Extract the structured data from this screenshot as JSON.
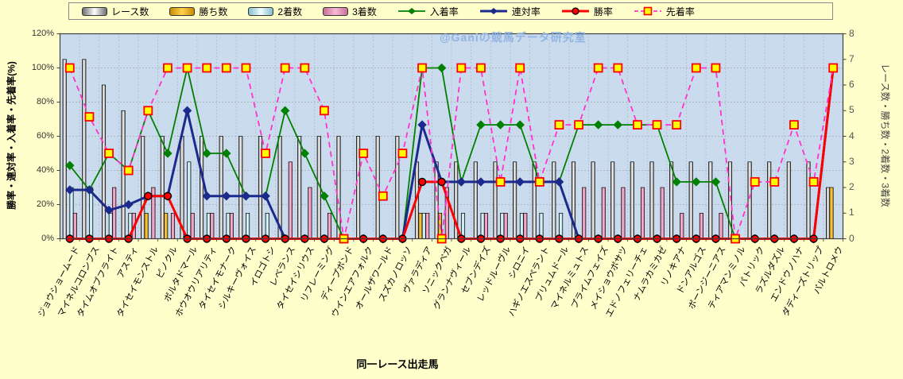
{
  "watermark": "@Ganiの競馬データ研究室",
  "colors": {
    "page_bg": "#FFFFCC",
    "plot_bg": "#CBDBEE",
    "grid": "#8C8C8C",
    "axis": "#404040",
    "tick_text": "#333333",
    "watermark_text": "#8FB4E3"
  },
  "chart_data": {
    "type": "combo",
    "title": "",
    "xlabel": "同一レース出走馬",
    "ylabel_left": "勝率・連対率・入着率・先着率(%)",
    "ylabel_right": "レース数・勝ち数・2着数・3着数",
    "ylim_left": [
      0,
      120
    ],
    "ylim_right": [
      0,
      8
    ],
    "yticks_left": [
      "0%",
      "20%",
      "40%",
      "60%",
      "80%",
      "100%",
      "120%"
    ],
    "yticks_right": [
      "0",
      "1",
      "2",
      "3",
      "4",
      "5",
      "6",
      "7",
      "8"
    ],
    "grid": true,
    "legend_position": "top",
    "categories": [
      "ジョウショームード",
      "マイネルコロンブス",
      "タイムオブフライト",
      "アスティ",
      "タイセイモンストル",
      "ピノクル",
      "ボルタドマール",
      "ホウオウリアリティ",
      "タイセイモナーク",
      "シルキーヴォイス",
      "イロゴトシ",
      "レベランス",
      "タイセイシリウス",
      "リフレーミング",
      "ディープボンド",
      "ウインエアフォルク",
      "オールザワールド",
      "スズカノロッソ",
      "ヴァラディア",
      "ソニックベガ",
      "グランナヴィール",
      "セブンデイズ",
      "レッドルーヴル",
      "シロニイ",
      "ハギノエスペラント",
      "プリュムドール",
      "マイネルミュトス",
      "プライムフェイズ",
      "メイショウボサツ",
      "エドノフェリーチェ",
      "ナムラカミカゼ",
      "リノキアナ",
      "ドンアルゴス",
      "ボーンジーニアス",
      "ティアマンミノル",
      "パトリック",
      "ラズルダズル",
      "エンドウノハナ",
      "ダディーズトリップ",
      "バルトロメウ"
    ],
    "series": [
      {
        "name": "レース数",
        "kind": "bar",
        "axis": "right",
        "color_mid": "#FFFFFF",
        "color_edge": "#6E6E6E",
        "values": [
          7,
          7,
          6,
          5,
          4,
          4,
          4,
          4,
          4,
          4,
          4,
          4,
          4,
          4,
          4,
          4,
          4,
          4,
          3,
          3,
          3,
          3,
          3,
          3,
          3,
          3,
          3,
          3,
          3,
          3,
          3,
          3,
          3,
          3,
          3,
          3,
          3,
          3,
          3,
          2
        ]
      },
      {
        "name": "勝ち数",
        "kind": "bar",
        "axis": "right",
        "color_mid": "#FFD24D",
        "color_edge": "#C98A00",
        "values": [
          0,
          0,
          0,
          0,
          1,
          1,
          0,
          0,
          0,
          0,
          0,
          0,
          0,
          0,
          0,
          0,
          0,
          0,
          1,
          1,
          0,
          0,
          0,
          0,
          0,
          0,
          0,
          0,
          0,
          0,
          0,
          0,
          0,
          0,
          0,
          0,
          0,
          0,
          0,
          2
        ]
      },
      {
        "name": "2着数",
        "kind": "bar",
        "axis": "right",
        "color_mid": "#EFFEFF",
        "color_edge": "#86BFCB",
        "values": [
          2,
          2,
          1,
          1,
          0,
          0,
          3,
          1,
          1,
          1,
          1,
          0,
          0,
          0,
          0,
          0,
          0,
          0,
          1,
          0,
          1,
          1,
          1,
          1,
          1,
          1,
          0,
          0,
          0,
          0,
          0,
          0,
          0,
          0,
          0,
          0,
          0,
          0,
          0,
          0
        ]
      },
      {
        "name": "3着数",
        "kind": "bar",
        "axis": "right",
        "color_mid": "#F9BBD6",
        "color_edge": "#C96E98",
        "values": [
          1,
          0,
          2,
          1,
          2,
          1,
          1,
          1,
          1,
          0,
          0,
          3,
          2,
          1,
          0,
          0,
          0,
          0,
          1,
          2,
          0,
          1,
          1,
          1,
          0,
          0,
          2,
          2,
          2,
          2,
          2,
          1,
          1,
          1,
          0,
          0,
          0,
          0,
          0,
          0
        ]
      },
      {
        "name": "入着率",
        "kind": "line",
        "axis": "left",
        "color": "#008000",
        "marker": "diamond",
        "line_width": 1.8,
        "values": [
          42.9,
          28.6,
          50,
          40,
          75,
          50,
          100,
          50,
          50,
          25,
          25,
          75,
          50,
          25,
          0,
          0,
          0,
          0,
          100,
          100,
          33.3,
          66.7,
          66.7,
          66.7,
          33.3,
          33.3,
          66.7,
          66.7,
          66.7,
          66.7,
          66.7,
          33.3,
          33.3,
          33.3,
          0,
          0,
          0,
          0,
          0,
          100
        ]
      },
      {
        "name": "連対率",
        "kind": "line",
        "axis": "left",
        "color": "#1B2A8C",
        "marker": "diamond",
        "line_width": 3,
        "values": [
          28.6,
          28.6,
          16.7,
          20,
          25,
          25,
          75,
          25,
          25,
          25,
          25,
          0,
          0,
          0,
          0,
          0,
          0,
          0,
          66.7,
          33.3,
          33.3,
          33.3,
          33.3,
          33.3,
          33.3,
          33.3,
          0,
          0,
          0,
          0,
          0,
          0,
          0,
          0,
          0,
          0,
          0,
          0,
          0,
          100
        ]
      },
      {
        "name": "勝率",
        "kind": "line",
        "axis": "left",
        "color": "#FF0000",
        "marker": "circle",
        "line_width": 3,
        "values": [
          0,
          0,
          0,
          0,
          25,
          25,
          0,
          0,
          0,
          0,
          0,
          0,
          0,
          0,
          0,
          0,
          0,
          0,
          33.3,
          33.3,
          0,
          0,
          0,
          0,
          0,
          0,
          0,
          0,
          0,
          0,
          0,
          0,
          0,
          0,
          0,
          0,
          0,
          0,
          0,
          100
        ]
      },
      {
        "name": "先着率",
        "kind": "line-dashed",
        "axis": "left",
        "color": "#FF33CC",
        "marker": "square",
        "line_width": 1.8,
        "marker_fill": "#FFFF00",
        "marker_stroke": "#FF0000",
        "values": [
          100,
          71.4,
          50,
          40,
          75,
          100,
          100,
          100,
          100,
          100,
          50,
          100,
          100,
          75,
          0,
          50,
          25,
          50,
          100,
          0,
          100,
          100,
          33.3,
          100,
          33.3,
          66.7,
          66.7,
          100,
          100,
          66.7,
          66.7,
          66.7,
          100,
          100,
          0,
          33.3,
          33.3,
          66.7,
          33.3,
          100
        ]
      }
    ]
  }
}
